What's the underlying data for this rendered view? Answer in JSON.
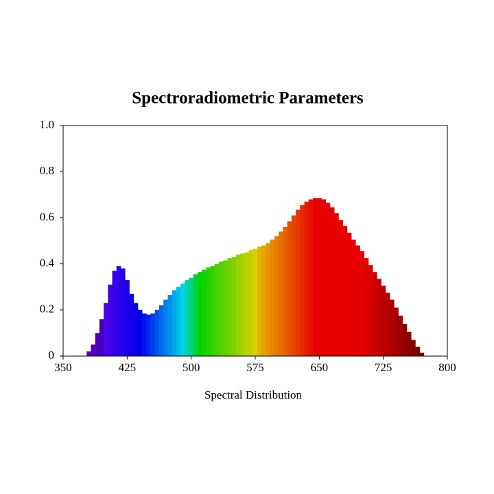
{
  "chart_data": {
    "type": "spectrum-area",
    "title": "Spectroradiometric Parameters",
    "x_label": "Spectral Distribution",
    "x": [
      350,
      355,
      360,
      365,
      370,
      375,
      380,
      385,
      390,
      395,
      400,
      405,
      410,
      415,
      420,
      425,
      430,
      435,
      440,
      445,
      450,
      455,
      460,
      465,
      470,
      475,
      480,
      485,
      490,
      495,
      500,
      505,
      510,
      515,
      520,
      525,
      530,
      535,
      540,
      545,
      550,
      555,
      560,
      565,
      570,
      575,
      580,
      585,
      590,
      595,
      600,
      605,
      610,
      615,
      620,
      625,
      630,
      635,
      640,
      645,
      650,
      655,
      660,
      665,
      670,
      675,
      680,
      685,
      690,
      695,
      700,
      705,
      710,
      715,
      720,
      725,
      730,
      735,
      740,
      745,
      750,
      755,
      760,
      765,
      770,
      775,
      780,
      785,
      790,
      795,
      800
    ],
    "values": [
      0,
      0,
      0,
      0,
      0,
      0,
      0.02,
      0.05,
      0.1,
      0.16,
      0.23,
      0.31,
      0.37,
      0.39,
      0.38,
      0.33,
      0.27,
      0.23,
      0.2,
      0.185,
      0.18,
      0.185,
      0.2,
      0.22,
      0.245,
      0.265,
      0.285,
      0.3,
      0.315,
      0.33,
      0.34,
      0.355,
      0.365,
      0.375,
      0.385,
      0.39,
      0.4,
      0.41,
      0.415,
      0.425,
      0.43,
      0.44,
      0.445,
      0.45,
      0.46,
      0.465,
      0.475,
      0.48,
      0.49,
      0.505,
      0.52,
      0.54,
      0.56,
      0.585,
      0.61,
      0.635,
      0.655,
      0.67,
      0.68,
      0.685,
      0.685,
      0.68,
      0.665,
      0.645,
      0.62,
      0.59,
      0.565,
      0.535,
      0.505,
      0.48,
      0.455,
      0.425,
      0.395,
      0.365,
      0.335,
      0.305,
      0.275,
      0.245,
      0.21,
      0.175,
      0.14,
      0.105,
      0.07,
      0.04,
      0.015,
      0,
      0,
      0,
      0,
      0,
      0
    ],
    "xlim": [
      350,
      800
    ],
    "xticks": [
      350,
      425,
      500,
      575,
      650,
      725,
      800
    ],
    "ylim": [
      0,
      1
    ],
    "yticks": [
      0,
      0.2,
      0.4,
      0.6,
      0.8,
      {
        "value": 1,
        "label": "1.0"
      }
    ]
  }
}
